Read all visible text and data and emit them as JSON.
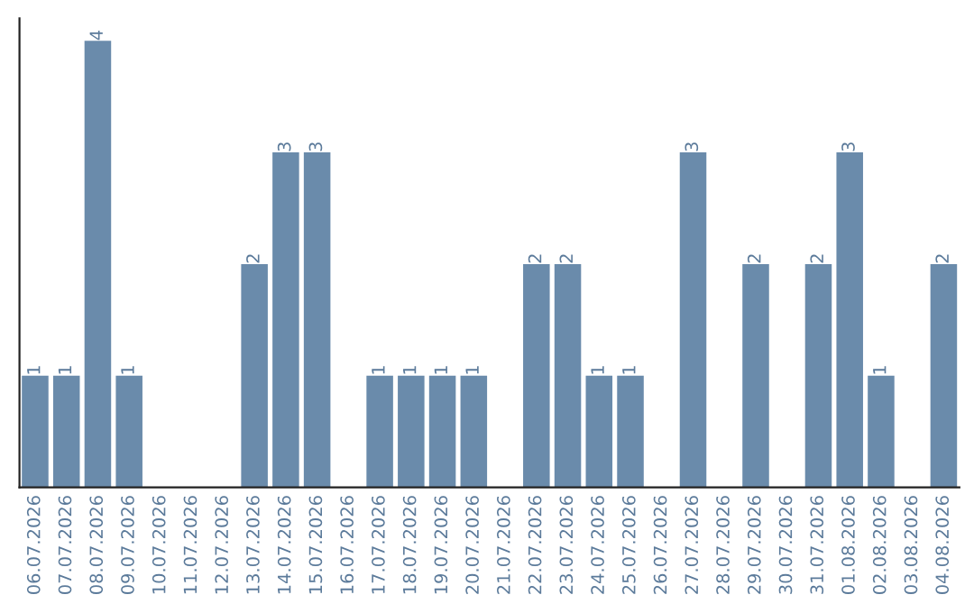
{
  "chart_data": {
    "type": "bar",
    "categories": [
      "06.07.2026",
      "07.07.2026",
      "08.07.2026",
      "09.07.2026",
      "10.07.2026",
      "11.07.2026",
      "12.07.2026",
      "13.07.2026",
      "14.07.2026",
      "15.07.2026",
      "16.07.2026",
      "17.07.2026",
      "18.07.2026",
      "19.07.2026",
      "20.07.2026",
      "21.07.2026",
      "22.07.2026",
      "23.07.2026",
      "24.07.2026",
      "25.07.2026",
      "26.07.2026",
      "27.07.2026",
      "28.07.2026",
      "29.07.2026",
      "30.07.2026",
      "31.07.2026",
      "01.08.2026",
      "02.08.2026",
      "03.08.2026",
      "04.08.2026"
    ],
    "values": [
      1,
      1,
      4,
      1,
      null,
      null,
      null,
      2,
      3,
      3,
      null,
      1,
      1,
      1,
      1,
      null,
      2,
      2,
      1,
      1,
      null,
      3,
      null,
      2,
      null,
      2,
      3,
      1,
      null,
      2
    ],
    "value_labels": [
      "1",
      "1",
      "4",
      "1",
      null,
      null,
      null,
      "2",
      "3",
      "3",
      null,
      "1",
      "1",
      "1",
      "1",
      null,
      "2",
      "2",
      "1",
      "1",
      null,
      "3",
      null,
      "2",
      null,
      "2",
      "3",
      "1",
      null,
      "2"
    ],
    "color": "#6a8bab",
    "ylim": [
      0,
      4.2
    ],
    "tick_labels": "x",
    "grid": false,
    "legend": false
  }
}
